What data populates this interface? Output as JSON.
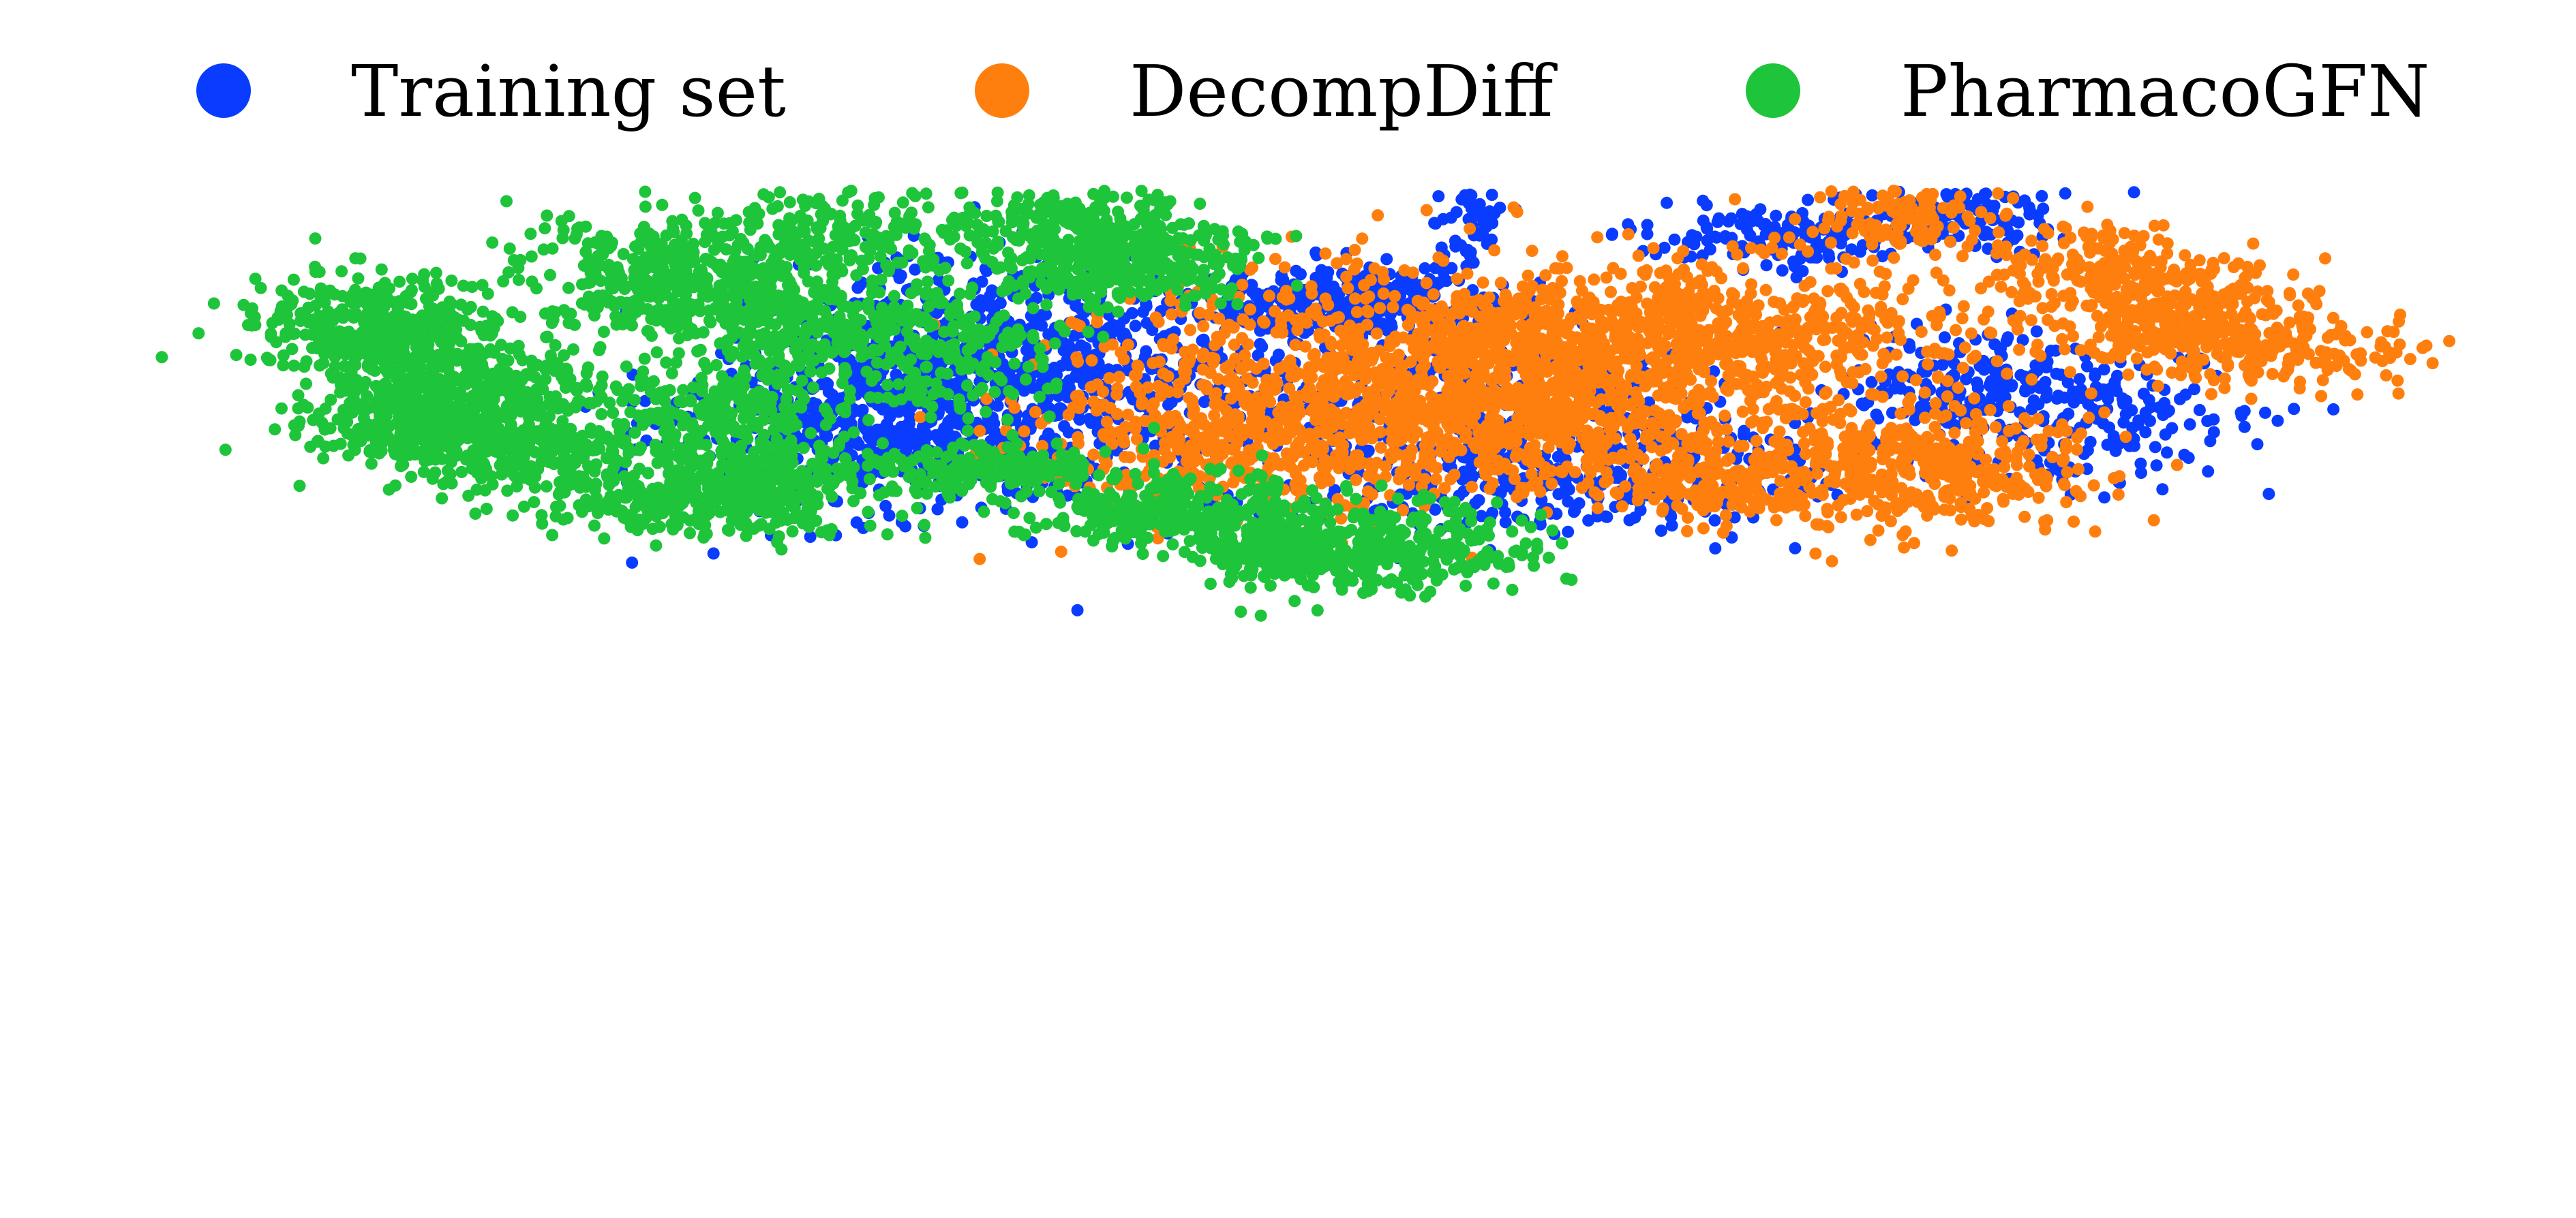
{
  "chart_data": {
    "type": "scatter",
    "title": "",
    "xlabel": "",
    "ylabel": "",
    "axes_visible": false,
    "grid": false,
    "legend_placement": "top",
    "series": [
      {
        "name": "Training set",
        "color": "#0a3cff"
      },
      {
        "name": "DecompDiff",
        "color": "#ff7f0e"
      },
      {
        "name": "PharmacoGFN",
        "color": "#1ec43a"
      }
    ]
  }
}
